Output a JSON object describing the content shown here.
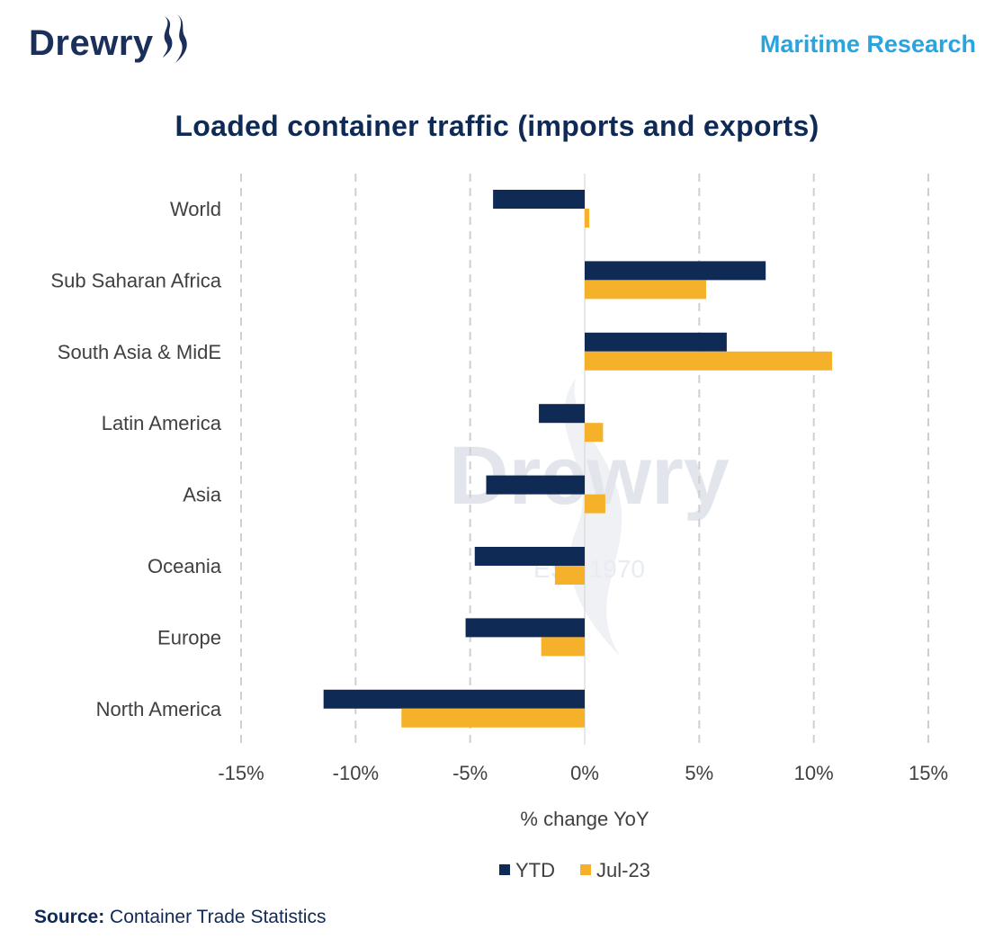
{
  "header": {
    "logo_text": "Drewry",
    "tagline": "Maritime Research"
  },
  "watermark": {
    "text": "Drewry",
    "subtext": "EST 1970"
  },
  "chart_data": {
    "type": "bar",
    "orientation": "horizontal",
    "title": "Loaded container traffic (imports and exports)",
    "xlabel": "% change YoY",
    "ylabel": "",
    "categories": [
      "World",
      "Sub Saharan Africa",
      "South Asia & MidE",
      "Latin America",
      "Asia",
      "Oceania",
      "Europe",
      "North America"
    ],
    "series": [
      {
        "name": "YTD",
        "color": "#0f2a55",
        "values": [
          -4.0,
          7.9,
          6.2,
          -2.0,
          -4.3,
          -4.8,
          -5.2,
          -11.4
        ]
      },
      {
        "name": "Jul-23",
        "color": "#f5b12a",
        "values": [
          0.2,
          5.3,
          10.8,
          0.8,
          0.9,
          -1.3,
          -1.9,
          -8.0
        ]
      }
    ],
    "xlim": [
      -15,
      15
    ],
    "xticks": [
      -15,
      -10,
      -5,
      0,
      5,
      10,
      15
    ],
    "xtick_labels": [
      "-15%",
      "-10%",
      "-5%",
      "0%",
      "5%",
      "10%",
      "15%"
    ],
    "grid": "vertical dashed",
    "legend": "bottom"
  },
  "footer": {
    "source_label": "Source:",
    "source_text": " Container Trade Statistics"
  }
}
